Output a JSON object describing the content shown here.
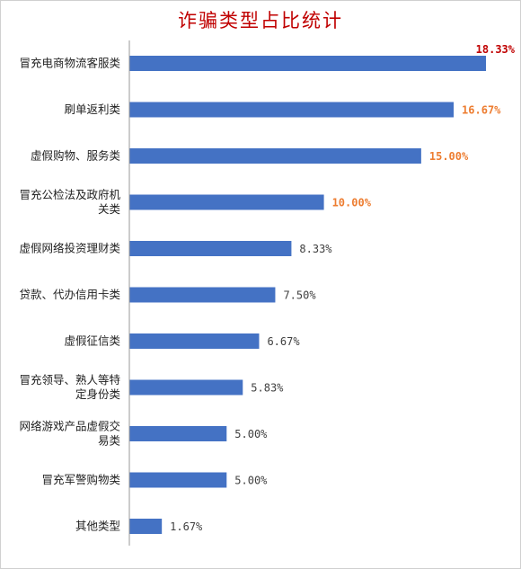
{
  "chart_data": {
    "type": "bar",
    "orientation": "horizontal",
    "title": "诈骗类型占比统计",
    "categories": [
      "冒充电商物流客服类",
      "刷单返利类",
      "虚假购物、服务类",
      "冒充公检法及政府机关类",
      "虚假网络投资理财类",
      "贷款、代办信用卡类",
      "虚假征信类",
      "冒充领导、熟人等特定身份类",
      "网络游戏产品虚假交易类",
      "冒充军警购物类",
      "其他类型"
    ],
    "category_lines": [
      [
        "冒充电商物流客服类"
      ],
      [
        "刷单返利类"
      ],
      [
        "虚假购物、服务类"
      ],
      [
        "冒充公检法及政府机",
        "关类"
      ],
      [
        "虚假网络投资理财类"
      ],
      [
        "贷款、代办信用卡类"
      ],
      [
        "虚假征信类"
      ],
      [
        "冒充领导、熟人等特",
        "定身份类"
      ],
      [
        "网络游戏产品虚假交",
        "易类"
      ],
      [
        "冒充军警购物类"
      ],
      [
        "其他类型"
      ]
    ],
    "values": [
      18.33,
      16.67,
      15.0,
      10.0,
      8.33,
      7.5,
      6.67,
      5.83,
      5.0,
      5.0,
      1.67
    ],
    "value_labels": [
      "18.33%",
      "16.67%",
      "15.00%",
      "10.00%",
      "8.33%",
      "7.50%",
      "6.67%",
      "5.83%",
      "5.00%",
      "5.00%",
      "1.67%"
    ],
    "label_colors": [
      "#c00000",
      "#ed7d31",
      "#ed7d31",
      "#ed7d31",
      "#404040",
      "#404040",
      "#404040",
      "#404040",
      "#404040",
      "#404040",
      "#404040"
    ],
    "label_bold": [
      true,
      true,
      true,
      true,
      false,
      false,
      false,
      false,
      false,
      false,
      false
    ],
    "bar_color": "#4472c4",
    "axis_color": "#999999",
    "xlim": [
      0,
      18.33
    ],
    "grid": false,
    "legend": "none"
  }
}
